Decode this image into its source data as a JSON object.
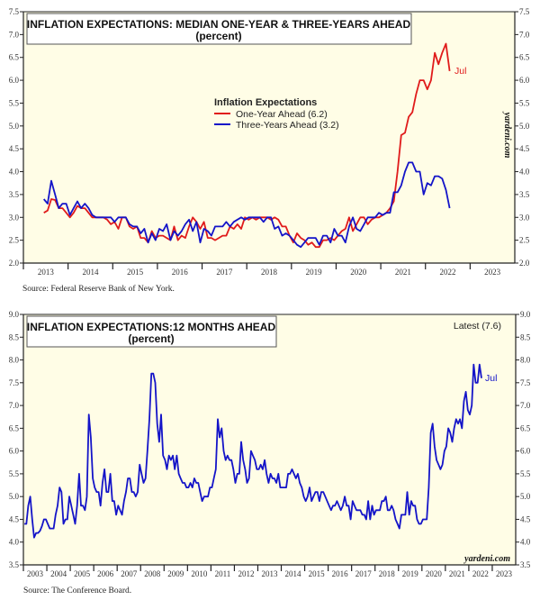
{
  "chart_data": [
    {
      "type": "line",
      "title": "INFLATION EXPECTATIONS: MEDIAN ONE-YEAR & THREE-YEARS AHEAD",
      "subtitle": "(percent)",
      "ylim": [
        2.0,
        7.5
      ],
      "yticks": [
        "2.0",
        "2.5",
        "3.0",
        "3.5",
        "4.0",
        "4.5",
        "5.0",
        "5.5",
        "6.0",
        "6.5",
        "7.0",
        "7.5"
      ],
      "xlim": [
        2013,
        2023
      ],
      "xticks": [
        "2013",
        "2014",
        "2015",
        "2016",
        "2017",
        "2018",
        "2019",
        "2020",
        "2021",
        "2022",
        "2023"
      ],
      "legend_title": "Inflation Expectations",
      "legend_position": "center",
      "annotation": "Jul",
      "watermark": "yardeni.com",
      "source": "Source: Federal Reserve Bank of New York.",
      "background": "#fffde6",
      "start": "2013-06",
      "series": [
        {
          "name": "One-Year Ahead (6.2)",
          "color": "#e01b1b",
          "values": [
            3.1,
            3.15,
            3.4,
            3.38,
            3.2,
            3.2,
            3.1,
            3.0,
            3.1,
            3.25,
            3.2,
            3.2,
            3.1,
            3.0,
            3.0,
            3.0,
            3.0,
            2.95,
            2.85,
            2.9,
            2.75,
            3.0,
            3.0,
            2.8,
            2.75,
            2.8,
            2.55,
            2.55,
            2.45,
            2.7,
            2.55,
            2.6,
            2.6,
            2.55,
            2.5,
            2.8,
            2.5,
            2.6,
            2.55,
            2.8,
            3.0,
            2.9,
            2.75,
            2.9,
            2.55,
            2.55,
            2.5,
            2.55,
            2.6,
            2.6,
            2.8,
            2.75,
            2.85,
            2.75,
            3.0,
            2.95,
            3.0,
            2.95,
            3.0,
            3.0,
            3.0,
            2.95,
            3.0,
            2.95,
            2.8,
            2.8,
            2.6,
            2.45,
            2.65,
            2.55,
            2.5,
            2.4,
            2.45,
            2.35,
            2.35,
            2.5,
            2.5,
            2.55,
            2.5,
            2.6,
            2.7,
            2.75,
            3.0,
            2.7,
            2.85,
            3.0,
            3.0,
            2.85,
            2.95,
            3.0,
            3.0,
            3.05,
            3.1,
            3.2,
            3.35,
            4.0,
            4.8,
            4.85,
            5.2,
            5.3,
            5.7,
            6.0,
            6.0,
            5.8,
            6.0,
            6.6,
            6.35,
            6.6,
            6.8,
            6.2
          ]
        },
        {
          "name": "Three-Years Ahead (3.2)",
          "color": "#1414c8",
          "values": [
            3.4,
            3.3,
            3.8,
            3.5,
            3.2,
            3.3,
            3.3,
            3.05,
            3.2,
            3.35,
            3.2,
            3.3,
            3.2,
            3.05,
            3.0,
            3.0,
            3.0,
            3.0,
            3.0,
            2.9,
            3.0,
            3.0,
            3.0,
            2.85,
            2.8,
            2.8,
            2.65,
            2.75,
            2.45,
            2.65,
            2.5,
            2.75,
            2.7,
            2.85,
            2.5,
            2.7,
            2.6,
            2.7,
            2.85,
            2.95,
            2.7,
            2.9,
            2.45,
            2.75,
            2.7,
            2.6,
            2.8,
            2.8,
            2.8,
            2.9,
            2.8,
            2.9,
            2.95,
            3.0,
            2.95,
            3.0,
            3.0,
            3.0,
            3.0,
            2.9,
            3.0,
            3.0,
            2.75,
            2.8,
            2.6,
            2.65,
            2.6,
            2.5,
            2.4,
            2.35,
            2.45,
            2.55,
            2.55,
            2.55,
            2.4,
            2.6,
            2.6,
            2.45,
            2.75,
            2.6,
            2.6,
            2.45,
            2.8,
            3.0,
            2.75,
            2.7,
            2.85,
            3.0,
            3.0,
            3.0,
            3.1,
            3.05,
            3.1,
            3.1,
            3.55,
            3.55,
            3.7,
            4.0,
            4.2,
            4.2,
            4.0,
            4.0,
            3.5,
            3.75,
            3.7,
            3.9,
            3.9,
            3.85,
            3.6,
            3.2
          ]
        }
      ]
    },
    {
      "type": "line",
      "title": "INFLATION EXPECTATIONS:12 MONTHS AHEAD",
      "subtitle": "(percent)",
      "ylim": [
        3.5,
        9.0
      ],
      "yticks": [
        "3.5",
        "4.0",
        "4.5",
        "5.0",
        "5.5",
        "6.0",
        "6.5",
        "7.0",
        "7.5",
        "8.0",
        "8.5",
        "9.0"
      ],
      "xlim": [
        2003,
        2024
      ],
      "xticks": [
        "2003",
        "2004",
        "2005",
        "2006",
        "2007",
        "2008",
        "2009",
        "2010",
        "2011",
        "2012",
        "2013",
        "2014",
        "2015",
        "2016",
        "2017",
        "2018",
        "2019",
        "2020",
        "2021",
        "2022",
        "2023"
      ],
      "latest_label": "Latest (7.6)",
      "annotation": "Jul",
      "watermark": "yardeni.com",
      "source": "Source: The Conference Board.",
      "background": "#fffde6",
      "start": "2003-01",
      "series": [
        {
          "color": "#1414c8",
          "values": [
            4.4,
            4.4,
            4.8,
            5.0,
            4.5,
            4.1,
            4.2,
            4.2,
            4.25,
            4.35,
            4.5,
            4.5,
            4.4,
            4.3,
            4.3,
            4.3,
            4.6,
            4.8,
            5.2,
            5.1,
            4.4,
            4.5,
            4.5,
            5.0,
            4.8,
            4.6,
            4.4,
            4.8,
            5.5,
            4.8,
            4.8,
            4.7,
            5.0,
            6.8,
            6.3,
            5.4,
            5.2,
            5.1,
            5.1,
            4.8,
            5.3,
            5.6,
            5.1,
            5.1,
            5.5,
            4.9,
            4.9,
            4.6,
            4.8,
            4.7,
            4.6,
            4.9,
            5.1,
            5.4,
            5.4,
            5.1,
            5.1,
            5.0,
            5.1,
            5.7,
            5.5,
            5.3,
            5.4,
            6.0,
            6.7,
            7.7,
            7.7,
            7.5,
            6.6,
            6.2,
            6.8,
            5.9,
            5.8,
            5.6,
            5.9,
            5.8,
            5.9,
            5.6,
            5.9,
            5.5,
            5.4,
            5.3,
            5.3,
            5.2,
            5.2,
            5.3,
            5.2,
            5.4,
            5.3,
            5.3,
            5.1,
            4.9,
            5.0,
            5.0,
            5.0,
            5.2,
            5.2,
            5.4,
            5.6,
            6.7,
            6.3,
            6.5,
            6.0,
            5.8,
            5.9,
            5.8,
            5.8,
            5.6,
            5.3,
            5.5,
            5.5,
            6.2,
            5.8,
            5.6,
            5.3,
            5.4,
            6.0,
            5.9,
            5.8,
            5.6,
            5.6,
            5.7,
            5.6,
            5.8,
            5.5,
            5.3,
            5.5,
            5.4,
            5.4,
            5.3,
            5.5,
            5.2,
            5.2,
            5.2,
            5.2,
            5.5,
            5.5,
            5.6,
            5.5,
            5.4,
            5.5,
            5.3,
            5.2,
            5.0,
            4.9,
            5.0,
            5.2,
            4.9,
            5.0,
            5.1,
            5.1,
            4.9,
            5.1,
            5.1,
            5.0,
            4.9,
            4.8,
            4.7,
            4.8,
            4.8,
            4.9,
            4.8,
            4.7,
            4.8,
            5.0,
            4.8,
            4.8,
            4.5,
            4.9,
            4.8,
            4.7,
            4.7,
            4.7,
            4.6,
            4.6,
            4.5,
            4.9,
            4.5,
            4.8,
            4.6,
            4.7,
            4.7,
            4.7,
            4.9,
            4.9,
            5.0,
            4.7,
            4.7,
            4.8,
            4.7,
            4.5,
            4.4,
            4.3,
            4.6,
            4.6,
            4.6,
            5.1,
            4.6,
            4.9,
            4.8,
            4.8,
            4.5,
            4.4,
            4.4,
            4.5,
            4.5,
            4.5,
            5.2,
            6.4,
            6.6,
            6.1,
            5.8,
            5.7,
            5.6,
            5.7,
            6.0,
            6.1,
            6.5,
            6.4,
            6.2,
            6.5,
            6.7,
            6.6,
            6.7,
            6.5,
            7.1,
            7.3,
            6.9,
            6.8,
            7.0,
            7.9,
            7.5,
            7.5,
            7.9,
            7.6
          ]
        }
      ]
    }
  ]
}
